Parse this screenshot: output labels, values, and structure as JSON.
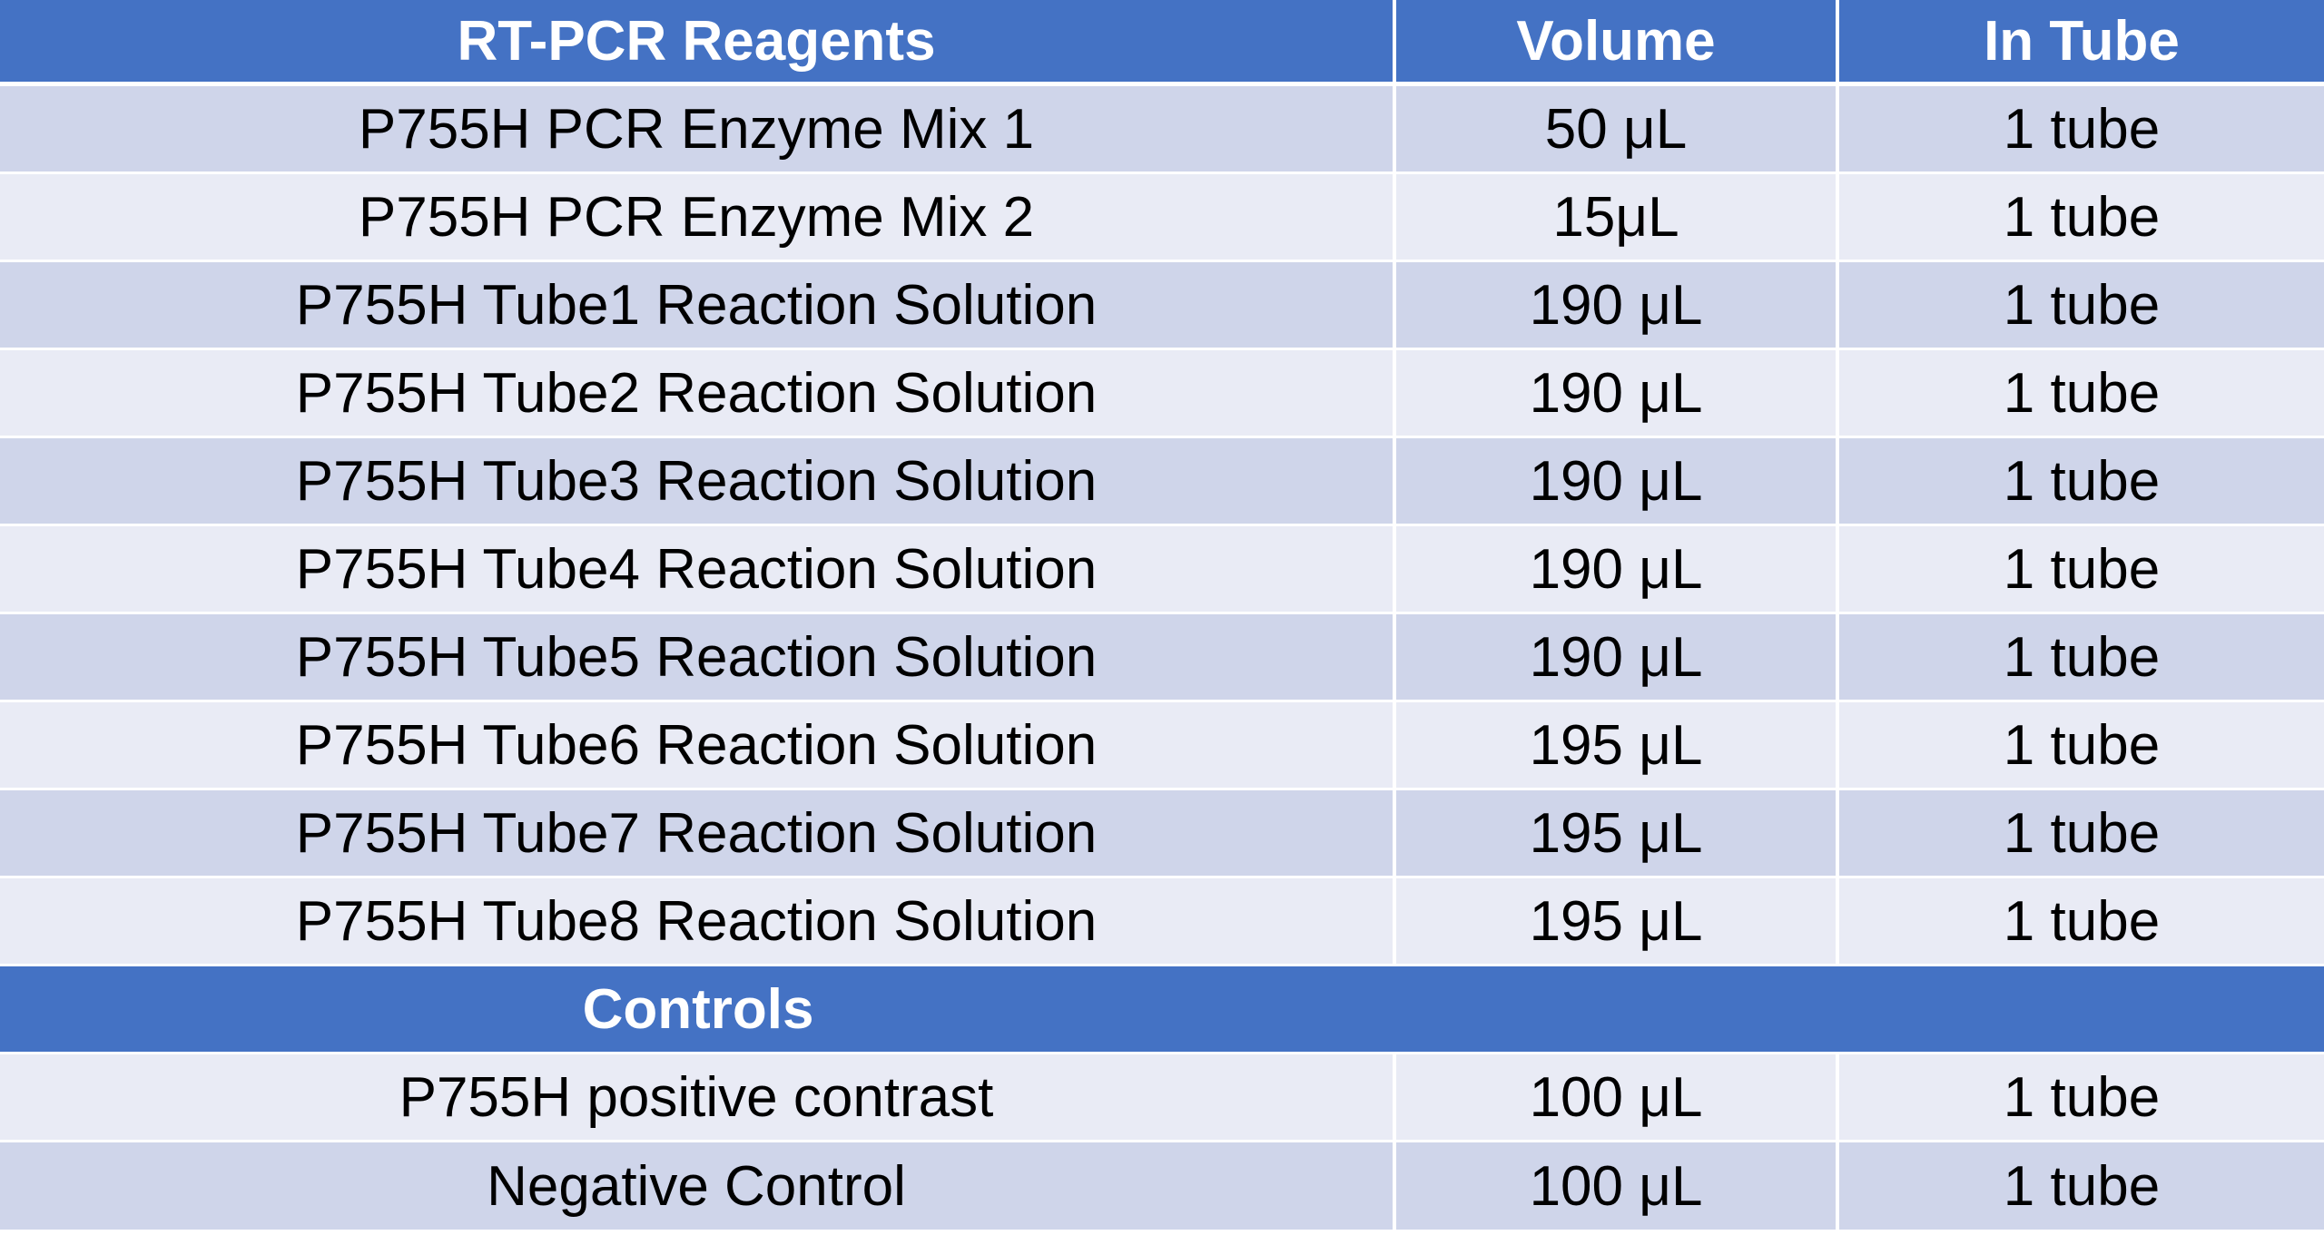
{
  "table": {
    "headers": [
      "RT-PCR Reagents",
      "Volume",
      "In Tube"
    ],
    "reagents": [
      [
        "P755H PCR Enzyme Mix 1",
        "50 μL",
        "1 tube"
      ],
      [
        "P755H PCR Enzyme Mix 2",
        "15μL",
        "1 tube"
      ],
      [
        "P755H Tube1 Reaction Solution",
        "190 μL",
        "1 tube"
      ],
      [
        "P755H Tube2 Reaction Solution",
        "190 μL",
        "1 tube"
      ],
      [
        "P755H Tube3 Reaction Solution",
        "190 μL",
        "1 tube"
      ],
      [
        "P755H Tube4 Reaction Solution",
        "190 μL",
        "1 tube"
      ],
      [
        "P755H Tube5 Reaction Solution",
        "190 μL",
        "1 tube"
      ],
      [
        "P755H Tube6 Reaction Solution",
        "195 μL",
        "1 tube"
      ],
      [
        "P755H Tube7 Reaction Solution",
        "195 μL",
        "1 tube"
      ],
      [
        "P755H Tube8 Reaction Solution",
        "195 μL",
        "1 tube"
      ]
    ],
    "controls_label": "Controls",
    "controls": [
      [
        "P755H positive contrast",
        "100 μL",
        "1 tube"
      ],
      [
        "Negative Control",
        "100 μL",
        "1 tube"
      ]
    ]
  },
  "colors": {
    "header_blue": "#4472c4",
    "band_dark": "#cfd5ea",
    "band_light": "#e9ebf5"
  }
}
